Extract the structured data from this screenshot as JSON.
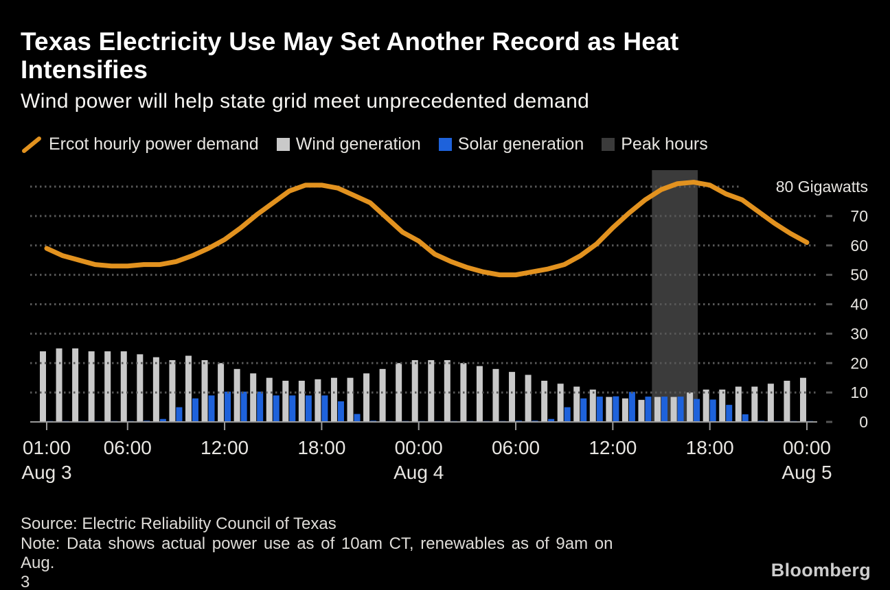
{
  "header": {
    "title_line1": "Texas Electricity Use May Set Another Record as Heat",
    "title_line2": "Intensifies",
    "subtitle": "Wind power will help state grid meet unprecedented demand"
  },
  "legend": [
    {
      "label": "Ercot hourly power demand",
      "swatch": "diagonal-line",
      "color": "#E2921F"
    },
    {
      "label": "Wind generation",
      "swatch": "square",
      "color": "#C9C9C9"
    },
    {
      "label": "Solar generation",
      "swatch": "square",
      "color": "#1E62DB"
    },
    {
      "label": "Peak hours",
      "swatch": "square",
      "color": "#3B3B3B"
    }
  ],
  "chart_data": {
    "type": "mixed-line-bar",
    "title": "Texas Electricity Use May Set Another Record as Heat Intensifies",
    "xlabel": "",
    "ylabel": "Gigawatts",
    "grid": "dotted-horizontal",
    "legend_position": "top",
    "categories": [
      "Aug 3 01:00",
      "Aug 3 02:00",
      "Aug 3 03:00",
      "Aug 3 04:00",
      "Aug 3 05:00",
      "Aug 3 06:00",
      "Aug 3 07:00",
      "Aug 3 08:00",
      "Aug 3 09:00",
      "Aug 3 10:00",
      "Aug 3 11:00",
      "Aug 3 12:00",
      "Aug 3 13:00",
      "Aug 3 14:00",
      "Aug 3 15:00",
      "Aug 3 16:00",
      "Aug 3 17:00",
      "Aug 3 18:00",
      "Aug 3 19:00",
      "Aug 3 20:00",
      "Aug 3 21:00",
      "Aug 3 22:00",
      "Aug 3 23:00",
      "Aug 4 00:00",
      "Aug 4 01:00",
      "Aug 4 02:00",
      "Aug 4 03:00",
      "Aug 4 04:00",
      "Aug 4 05:00",
      "Aug 4 06:00",
      "Aug 4 07:00",
      "Aug 4 08:00",
      "Aug 4 09:00",
      "Aug 4 10:00",
      "Aug 4 11:00",
      "Aug 4 12:00",
      "Aug 4 13:00",
      "Aug 4 14:00",
      "Aug 4 15:00",
      "Aug 4 16:00",
      "Aug 4 17:00",
      "Aug 4 18:00",
      "Aug 4 19:00",
      "Aug 4 20:00",
      "Aug 4 21:00",
      "Aug 4 22:00",
      "Aug 4 23:00",
      "Aug 5 00:00"
    ],
    "series": [
      {
        "name": "Ercot hourly power demand",
        "type": "line",
        "color": "#E2921F",
        "values": [
          59,
          56.5,
          55,
          53.5,
          53,
          53,
          53.5,
          53.5,
          54.5,
          56.5,
          59,
          62,
          66,
          70.5,
          74.5,
          78.5,
          80.5,
          80.5,
          79.5,
          77,
          74.5,
          69.5,
          64.5,
          61.5,
          57,
          54.5,
          52.5,
          51,
          50,
          50,
          51,
          52,
          53.5,
          56.5,
          60.5,
          66,
          71,
          75.5,
          79,
          81,
          81.5,
          80.5,
          77.5,
          75.5,
          71.5,
          67.5,
          64,
          61
        ]
      },
      {
        "name": "Wind generation",
        "type": "bar",
        "color": "#C9C9C9",
        "values": [
          24,
          25,
          25,
          24,
          24,
          24,
          23,
          22,
          21,
          22.5,
          21,
          20,
          18,
          16.5,
          15,
          14,
          14,
          14.5,
          15,
          15,
          16.5,
          18,
          20,
          21,
          21,
          21,
          20,
          19,
          18,
          17,
          16,
          14,
          13,
          12,
          11,
          8.5,
          8,
          7.5,
          8.5,
          8.5,
          10,
          11,
          11,
          12,
          12,
          13,
          14,
          15
        ]
      },
      {
        "name": "Solar generation",
        "type": "bar",
        "color": "#1E62DB",
        "values": [
          0.3,
          0.3,
          0.3,
          0.3,
          0.3,
          0.3,
          0.4,
          1,
          5,
          8,
          9,
          10.3,
          10.3,
          10.3,
          9,
          9,
          9,
          9,
          7,
          2.7,
          0.4,
          0.3,
          0.3,
          0.3,
          0.3,
          0.3,
          0.3,
          0.3,
          0.3,
          0.4,
          0.4,
          1,
          5,
          8,
          8.6,
          8.7,
          10.2,
          8.6,
          8.6,
          8.6,
          7.8,
          7.6,
          5.8,
          2.6,
          0.4,
          0.3,
          0.3,
          0.3
        ]
      }
    ],
    "peak_band": {
      "name": "Peak hours",
      "color": "#3B3B3B",
      "from": "Aug 4 14:25",
      "to": "Aug 4 17:15",
      "from_index": 37.42,
      "to_index": 40.25
    },
    "y_axis": {
      "min": 0,
      "max": 80,
      "ticks": [
        0,
        10,
        20,
        30,
        40,
        50,
        60,
        70,
        80
      ],
      "top_label": "80 Gigawatts",
      "unit": "Gigawatts"
    },
    "x_axis": {
      "ticks": [
        {
          "index": 0,
          "label": "01:00",
          "date": "Aug 3"
        },
        {
          "index": 5,
          "label": "06:00"
        },
        {
          "index": 11,
          "label": "12:00"
        },
        {
          "index": 17,
          "label": "18:00"
        },
        {
          "index": 23,
          "label": "00:00",
          "date": "Aug 4"
        },
        {
          "index": 29,
          "label": "06:00"
        },
        {
          "index": 35,
          "label": "12:00"
        },
        {
          "index": 41,
          "label": "18:00"
        },
        {
          "index": 47,
          "label": "00:00",
          "date": "Aug 5"
        }
      ]
    },
    "colors": {
      "background": "#000000",
      "gridline": "#575757",
      "axis_line": "#9A9A9A",
      "tick_text": "#E8E6E2"
    }
  },
  "footer": {
    "source": "Source: Electric Reliability Council of Texas",
    "note_line1": "Note: Data shows actual power use as of 10am CT, renewables as of 9am on Aug.",
    "note_line2": "3",
    "logo": "Bloomberg"
  }
}
